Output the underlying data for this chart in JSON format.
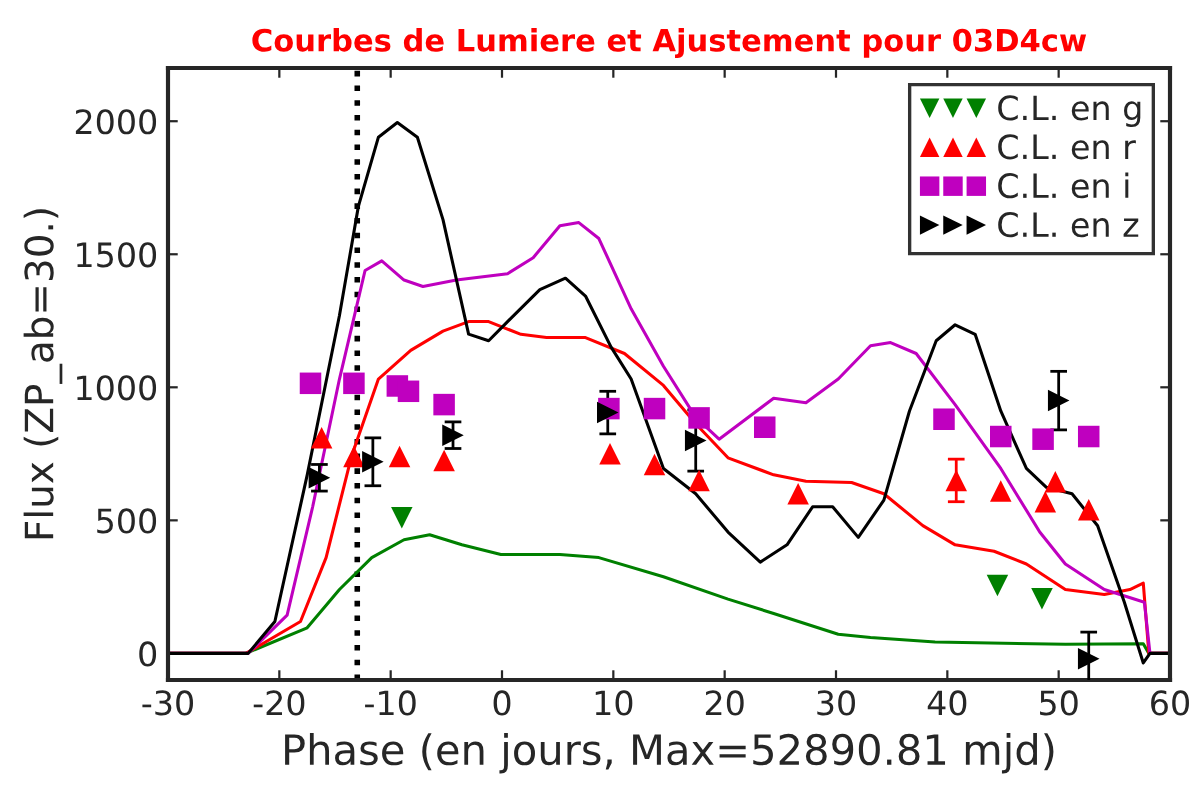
{
  "chart_data": {
    "type": "scatter",
    "title": "Courbes de Lumiere et Ajustement pour 03D4cw",
    "xlabel": "Phase (en jours, Max=52890.81 mjd)",
    "ylabel": "Flux (ZP_ab=30.)",
    "xlim": [
      -30,
      60
    ],
    "ylim": [
      -100,
      2200
    ],
    "xticks": [
      -30,
      -20,
      -10,
      0,
      10,
      20,
      30,
      40,
      50,
      60
    ],
    "yticks": [
      0,
      500,
      1000,
      1500,
      2000
    ],
    "grid": false,
    "legend": "top right",
    "ref_lines": [
      {
        "axis": "x",
        "value": -13,
        "line_style": "dotted",
        "color": "#000000"
      }
    ],
    "series": [
      {
        "name": "C.L. en g",
        "color": "#008000",
        "marker": "triangle_down",
        "x": [
          -9,
          44.5,
          48.5
        ],
        "values": [
          510,
          255,
          205
        ]
      },
      {
        "name": "C.L. en r",
        "color": "#ff0000",
        "marker": "triangle",
        "x": [
          -16.2,
          -13.3,
          -9.2,
          -5.2,
          9.7,
          13.7,
          17.7,
          26.6,
          40.8,
          44.8,
          48.8,
          49.7,
          52.7
        ],
        "values": [
          810,
          740,
          740,
          725,
          750,
          710,
          650,
          600,
          650,
          610,
          570,
          645,
          540
        ],
        "errors": [
          null,
          null,
          null,
          null,
          null,
          null,
          null,
          null,
          80,
          null,
          null,
          null,
          null
        ]
      },
      {
        "name": "C.L. en i",
        "color": "#bf00bf",
        "marker": "square",
        "x": [
          -17.2,
          -13.3,
          -9.4,
          -8.4,
          -5.2,
          9.6,
          13.7,
          17.7,
          23.6,
          39.7,
          44.8,
          48.6,
          52.7
        ],
        "values": [
          1015,
          1015,
          1005,
          985,
          935,
          920,
          920,
          885,
          850,
          880,
          815,
          805,
          815
        ]
      },
      {
        "name": "C.L. en z",
        "color": "#000000",
        "marker": "triangle_right",
        "x": [
          -16.4,
          -11.6,
          -4.4,
          9.5,
          17.4,
          50.0,
          52.7
        ],
        "values": [
          660,
          720,
          820,
          905,
          800,
          950,
          -20
        ],
        "errors": [
          50,
          90,
          50,
          80,
          115,
          110,
          100
        ]
      },
      {
        "type": "line",
        "color": "#008000",
        "x": [
          -30,
          -23,
          -17.5,
          -14.6,
          -11.7,
          -8.8,
          -6.5,
          -3.6,
          -0.1,
          5.2,
          8.7,
          14.5,
          20.3,
          24.4,
          30.2,
          33.1,
          38.9,
          50.6,
          57.6,
          58.1,
          60
        ],
        "values": [
          0,
          0,
          96,
          240,
          360,
          427,
          446,
          408,
          372,
          372,
          360,
          288,
          204,
          150,
          72,
          60,
          43,
          34,
          36,
          0,
          0
        ]
      },
      {
        "type": "line",
        "color": "#ff0000",
        "x": [
          -30,
          -23,
          -18.1,
          -15.8,
          -13.5,
          -11.1,
          -8.2,
          -5.3,
          -3.0,
          -1.2,
          1.7,
          4.0,
          7.5,
          11.0,
          14.5,
          17.4,
          20.3,
          24.4,
          27.3,
          31.4,
          34.3,
          37.8,
          40.7,
          44.2,
          47.1,
          50.6,
          54.1,
          56.4,
          57.6,
          58.1,
          60
        ],
        "values": [
          0,
          0,
          120,
          360,
          743,
          1031,
          1139,
          1211,
          1247,
          1247,
          1199,
          1187,
          1187,
          1127,
          1007,
          863,
          735,
          671,
          647,
          642,
          600,
          480,
          408,
          384,
          336,
          240,
          221,
          240,
          264,
          0,
          0
        ]
      },
      {
        "type": "line",
        "color": "#bf00bf",
        "x": [
          -30,
          -22.8,
          -19.3,
          -17.0,
          -14.6,
          -12.3,
          -10.8,
          -8.8,
          -7.1,
          -4.1,
          0.5,
          2.8,
          5.2,
          6.9,
          8.7,
          11.6,
          14.5,
          17.4,
          19.5,
          24.4,
          27.3,
          30.2,
          33.1,
          34.9,
          37.2,
          40.7,
          44.8,
          48.3,
          50.6,
          54.1,
          57.7,
          58.2,
          60
        ],
        "values": [
          0,
          0,
          144,
          552,
          1031,
          1439,
          1475,
          1403,
          1379,
          1403,
          1427,
          1487,
          1607,
          1619,
          1559,
          1295,
          1079,
          887,
          805,
          959,
          942,
          1031,
          1156,
          1168,
          1127,
          935,
          695,
          456,
          336,
          240,
          192,
          0,
          0
        ]
      },
      {
        "type": "line",
        "color": "#000000",
        "x": [
          -30,
          -22.8,
          -20.4,
          -17.5,
          -14.6,
          -12.9,
          -11.1,
          -9.4,
          -7.6,
          -5.3,
          -3.0,
          -1.2,
          0.5,
          3.4,
          5.7,
          7.5,
          9.8,
          11.6,
          14.5,
          17.4,
          20.3,
          23.2,
          25.6,
          27.9,
          29.7,
          32.0,
          34.3,
          36.6,
          39.0,
          40.7,
          42.5,
          44.8,
          47.1,
          48.9,
          51.2,
          53.5,
          55.9,
          57.6,
          58.2,
          60
        ],
        "values": [
          0,
          0,
          120,
          670,
          1270,
          1680,
          1940,
          1995,
          1940,
          1630,
          1200,
          1175,
          1247,
          1367,
          1410,
          1343,
          1151,
          1031,
          695,
          600,
          456,
          343,
          408,
          551,
          551,
          436,
          576,
          911,
          1175,
          1235,
          1199,
          911,
          695,
          624,
          600,
          480,
          192,
          -36,
          0,
          0
        ]
      }
    ]
  }
}
